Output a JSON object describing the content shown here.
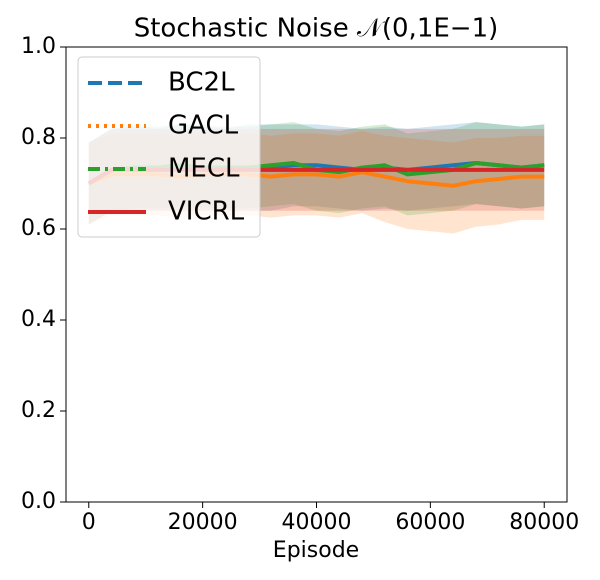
{
  "chart_data": {
    "type": "line",
    "title": "Stochastic Noise 𝒩(0,1E−1)",
    "x_label": "Episode",
    "x": [
      0,
      4000,
      8000,
      12000,
      16000,
      20000,
      24000,
      28000,
      32000,
      36000,
      40000,
      44000,
      48000,
      52000,
      56000,
      60000,
      64000,
      68000,
      72000,
      76000,
      80000
    ],
    "xlim": [
      -4000,
      84000
    ],
    "xticks": [
      0,
      20000,
      40000,
      60000,
      80000
    ],
    "ylim": [
      0,
      1
    ],
    "yticks": [
      {
        "value": 0,
        "label": "0.0"
      },
      0.2,
      0.4,
      0.6,
      0.8,
      {
        "value": 1,
        "label": "1.0"
      }
    ],
    "legend": "upper left",
    "series": [
      {
        "name": "BC2L",
        "color": "#1f77b4",
        "linestyle": "dashed",
        "values": [
          0.7,
          0.73,
          0.735,
          0.73,
          0.735,
          0.735,
          0.73,
          0.735,
          0.735,
          0.74,
          0.74,
          0.735,
          0.73,
          0.735,
          0.73,
          0.735,
          0.74,
          0.745,
          0.74,
          0.735,
          0.74
        ],
        "upper": [
          0.79,
          0.82,
          0.83,
          0.82,
          0.83,
          0.83,
          0.82,
          0.83,
          0.83,
          0.83,
          0.83,
          0.825,
          0.82,
          0.825,
          0.82,
          0.825,
          0.83,
          0.835,
          0.83,
          0.825,
          0.83
        ],
        "lower": [
          0.61,
          0.64,
          0.64,
          0.64,
          0.64,
          0.64,
          0.64,
          0.64,
          0.64,
          0.65,
          0.65,
          0.645,
          0.64,
          0.645,
          0.64,
          0.645,
          0.65,
          0.655,
          0.65,
          0.645,
          0.65
        ]
      },
      {
        "name": "GACL",
        "color": "#ff7f0e",
        "linestyle": "dotted",
        "values": [
          0.7,
          0.72,
          0.72,
          0.72,
          0.715,
          0.72,
          0.72,
          0.72,
          0.715,
          0.72,
          0.72,
          0.715,
          0.725,
          0.715,
          0.705,
          0.7,
          0.695,
          0.705,
          0.71,
          0.715,
          0.715
        ],
        "upper": [
          0.79,
          0.81,
          0.81,
          0.81,
          0.805,
          0.81,
          0.81,
          0.81,
          0.805,
          0.81,
          0.81,
          0.805,
          0.815,
          0.805,
          0.8,
          0.795,
          0.79,
          0.8,
          0.8,
          0.805,
          0.805
        ],
        "lower": [
          0.61,
          0.63,
          0.63,
          0.63,
          0.625,
          0.63,
          0.63,
          0.63,
          0.625,
          0.63,
          0.63,
          0.625,
          0.635,
          0.615,
          0.6,
          0.595,
          0.59,
          0.605,
          0.61,
          0.62,
          0.62
        ]
      },
      {
        "name": "MECL",
        "color": "#2ca02c",
        "linestyle": "dashdot",
        "values": [
          0.7,
          0.73,
          0.735,
          0.735,
          0.74,
          0.735,
          0.735,
          0.735,
          0.74,
          0.745,
          0.73,
          0.725,
          0.735,
          0.74,
          0.72,
          0.725,
          0.73,
          0.745,
          0.74,
          0.735,
          0.74
        ],
        "upper": [
          0.79,
          0.82,
          0.825,
          0.825,
          0.83,
          0.825,
          0.825,
          0.825,
          0.83,
          0.835,
          0.82,
          0.815,
          0.825,
          0.83,
          0.81,
          0.815,
          0.82,
          0.835,
          0.83,
          0.825,
          0.83
        ],
        "lower": [
          0.61,
          0.64,
          0.645,
          0.645,
          0.65,
          0.645,
          0.645,
          0.645,
          0.65,
          0.655,
          0.64,
          0.635,
          0.645,
          0.65,
          0.63,
          0.635,
          0.64,
          0.655,
          0.65,
          0.645,
          0.65
        ]
      },
      {
        "name": "VICRL",
        "color": "#d62728",
        "linestyle": "solid",
        "values": [
          0.7,
          0.73,
          0.73,
          0.73,
          0.73,
          0.73,
          0.73,
          0.73,
          0.73,
          0.73,
          0.73,
          0.73,
          0.73,
          0.73,
          0.73,
          0.73,
          0.73,
          0.73,
          0.73,
          0.73,
          0.73
        ],
        "upper": [
          0.79,
          0.82,
          0.82,
          0.82,
          0.82,
          0.82,
          0.82,
          0.82,
          0.82,
          0.82,
          0.82,
          0.82,
          0.82,
          0.82,
          0.82,
          0.82,
          0.82,
          0.82,
          0.82,
          0.82,
          0.82
        ],
        "lower": [
          0.61,
          0.64,
          0.64,
          0.64,
          0.64,
          0.64,
          0.64,
          0.64,
          0.64,
          0.64,
          0.64,
          0.64,
          0.64,
          0.64,
          0.64,
          0.64,
          0.64,
          0.64,
          0.64,
          0.64,
          0.64
        ]
      }
    ]
  }
}
